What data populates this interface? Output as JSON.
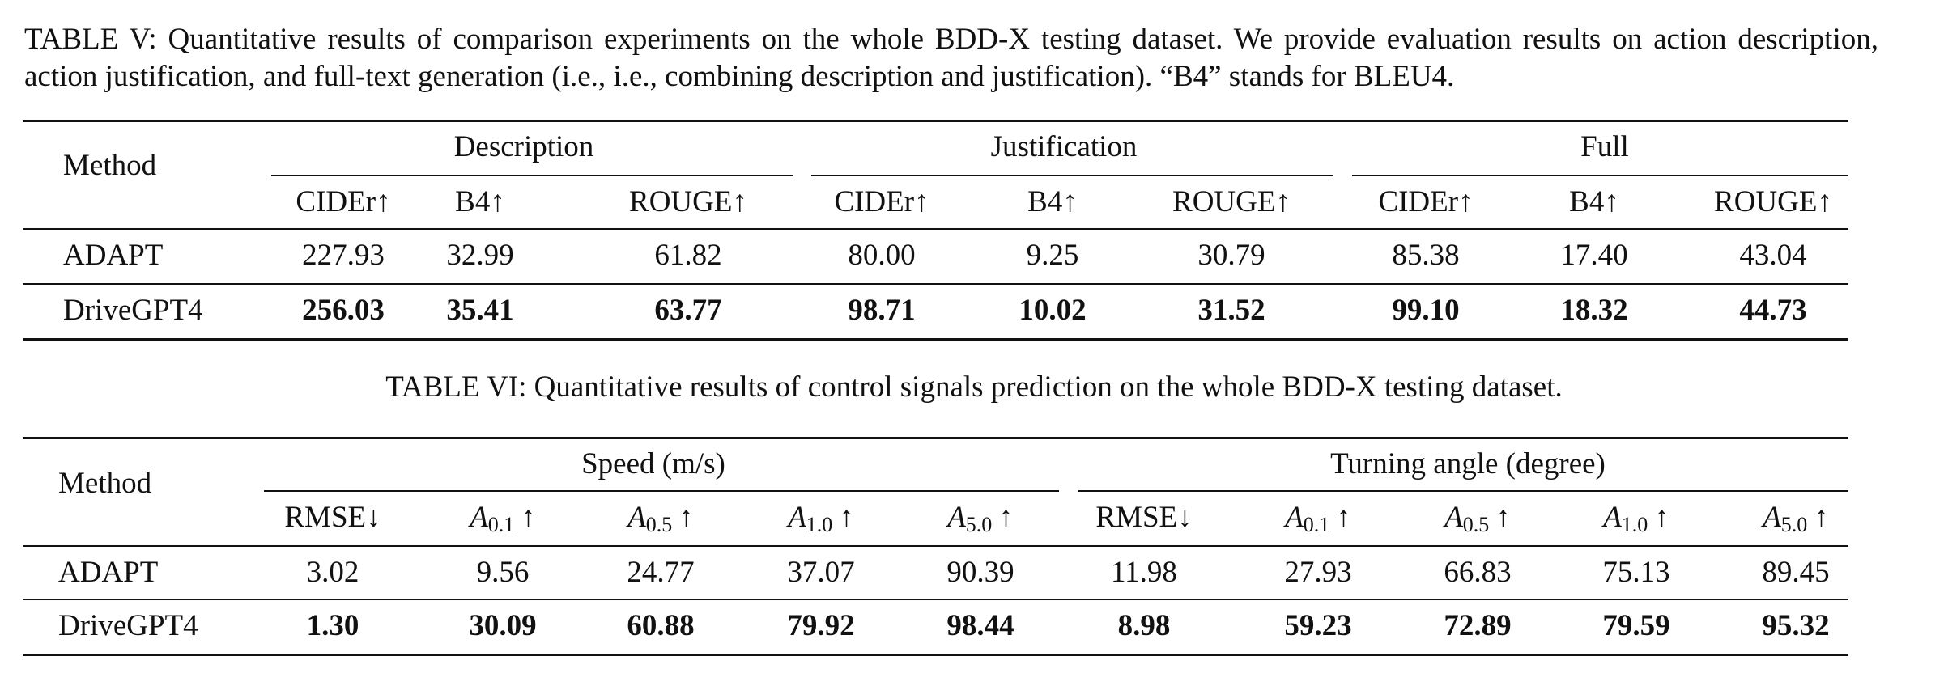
{
  "table5": {
    "caption": "TABLE V: Quantitative results of comparison experiments on the whole BDD-X testing dataset. We provide evaluation results on action description, action justification, and full-text generation (i.e., i.e., combining description and justification). “B4” stands for BLEU4.",
    "method_header": "Method",
    "groups": [
      "Description",
      "Justification",
      "Full"
    ],
    "metrics": [
      "CIDEr↑",
      "B4↑",
      "ROUGE↑",
      "CIDEr↑",
      "B4↑",
      "ROUGE↑",
      "CIDEr↑",
      "B4↑",
      "ROUGE↑"
    ],
    "rows": [
      {
        "method": "ADAPT",
        "values": [
          "227.93",
          "32.99",
          "61.82",
          "80.00",
          "9.25",
          "30.79",
          "85.38",
          "17.40",
          "43.04"
        ]
      },
      {
        "method": "DriveGPT4",
        "values": [
          "256.03",
          "35.41",
          "63.77",
          "98.71",
          "10.02",
          "31.52",
          "99.10",
          "18.32",
          "44.73"
        ]
      }
    ]
  },
  "table6": {
    "caption": "TABLE VI: Quantitative results of control signals prediction on the whole BDD-X testing dataset.",
    "method_header": "Method",
    "groups": [
      "Speed (m/s)",
      "Turning angle (degree)"
    ],
    "metrics": [
      {
        "base": "RMSE↓"
      },
      {
        "base": "A",
        "sub": "0.1",
        "arrow": "↑"
      },
      {
        "base": "A",
        "sub": "0.5",
        "arrow": "↑"
      },
      {
        "base": "A",
        "sub": "1.0",
        "arrow": "↑"
      },
      {
        "base": "A",
        "sub": "5.0",
        "arrow": "↑"
      },
      {
        "base": "RMSE↓"
      },
      {
        "base": "A",
        "sub": "0.1",
        "arrow": "↑"
      },
      {
        "base": "A",
        "sub": "0.5",
        "arrow": "↑"
      },
      {
        "base": "A",
        "sub": "1.0",
        "arrow": "↑"
      },
      {
        "base": "A",
        "sub": "5.0",
        "arrow": "↑"
      }
    ],
    "rows": [
      {
        "method": "ADAPT",
        "values": [
          "3.02",
          "9.56",
          "24.77",
          "37.07",
          "90.39",
          "11.98",
          "27.93",
          "66.83",
          "75.13",
          "89.45"
        ]
      },
      {
        "method": "DriveGPT4",
        "values": [
          "1.30",
          "30.09",
          "60.88",
          "79.92",
          "98.44",
          "8.98",
          "59.23",
          "72.89",
          "79.59",
          "95.32"
        ]
      }
    ]
  }
}
